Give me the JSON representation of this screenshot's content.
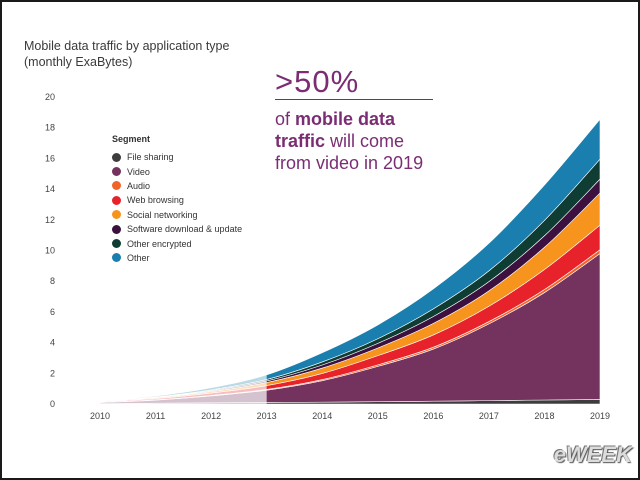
{
  "chart_data": {
    "type": "area",
    "stacked": true,
    "title": "Mobile data traffic by application type",
    "subtitle": "(monthly ExaBytes)",
    "x": [
      "2010",
      "2011",
      "2012",
      "2013",
      "2014",
      "2015",
      "2016",
      "2017",
      "2018",
      "2019"
    ],
    "ylim": [
      0,
      20
    ],
    "yticks": [
      "0",
      "2",
      "4",
      "6",
      "8",
      "10",
      "12",
      "14",
      "16",
      "18",
      "20"
    ],
    "legend_title": "Segment",
    "legend_position": "left",
    "series": [
      {
        "name": "File sharing",
        "color": "#3d3d3d",
        "values": [
          0.02,
          0.05,
          0.08,
          0.1,
          0.12,
          0.15,
          0.18,
          0.22,
          0.26,
          0.3
        ]
      },
      {
        "name": "Video",
        "color": "#74325f",
        "values": [
          0.08,
          0.2,
          0.45,
          0.8,
          1.4,
          2.3,
          3.4,
          5.0,
          7.0,
          9.5
        ]
      },
      {
        "name": "Audio",
        "color": "#f0642a",
        "values": [
          0.01,
          0.02,
          0.03,
          0.05,
          0.07,
          0.1,
          0.12,
          0.15,
          0.2,
          0.25
        ]
      },
      {
        "name": "Web browsing",
        "color": "#e8222b",
        "values": [
          0.04,
          0.08,
          0.15,
          0.25,
          0.4,
          0.6,
          0.8,
          1.0,
          1.3,
          1.6
        ]
      },
      {
        "name": "Social networking",
        "color": "#f7941d",
        "values": [
          0.02,
          0.06,
          0.1,
          0.2,
          0.35,
          0.5,
          0.75,
          1.0,
          1.45,
          2.1
        ]
      },
      {
        "name": "Software download & update",
        "color": "#3c1140",
        "values": [
          0.01,
          0.03,
          0.06,
          0.1,
          0.2,
          0.3,
          0.45,
          0.6,
          0.75,
          0.9
        ]
      },
      {
        "name": "Other encrypted",
        "color": "#0f3d33",
        "values": [
          0.01,
          0.02,
          0.05,
          0.1,
          0.2,
          0.3,
          0.5,
          0.7,
          1.0,
          1.3
        ]
      },
      {
        "name": "Other",
        "color": "#1a7fae",
        "values": [
          0.03,
          0.06,
          0.14,
          0.3,
          0.6,
          0.9,
          1.3,
          1.8,
          2.3,
          2.6
        ]
      }
    ]
  },
  "callout": {
    "headline": ">50%",
    "line1_a": "of ",
    "line1_b": "mobile data",
    "line2_a": "traffic",
    "line2_b": " will come",
    "line3": "from video in 2019"
  },
  "watermark": "eWEEK"
}
